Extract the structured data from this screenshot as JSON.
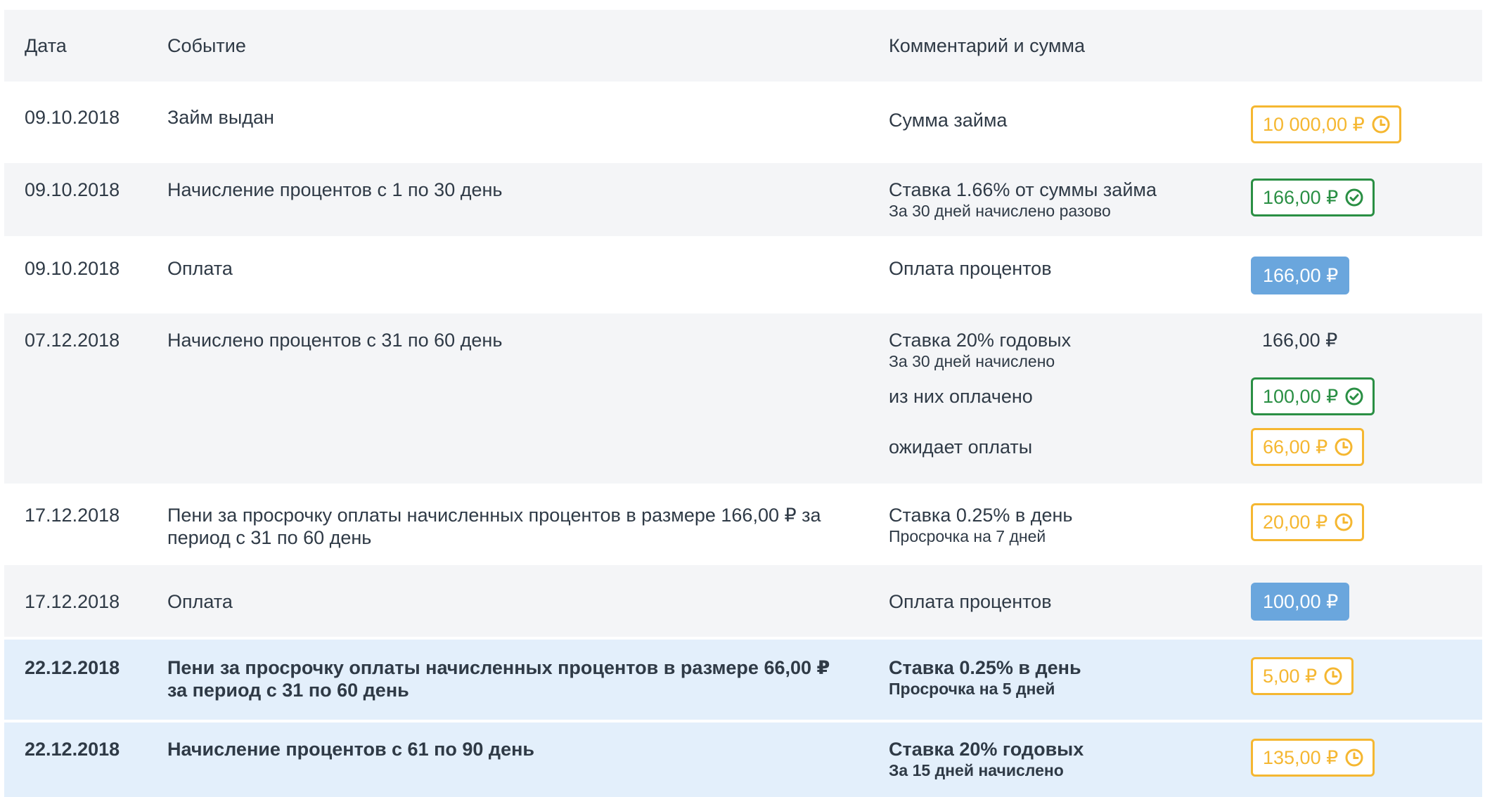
{
  "columns": {
    "date": "Дата",
    "event": "Событие",
    "comment": "Комментарий и сумма"
  },
  "rows": [
    {
      "date": "09.10.2018",
      "event": "Займ выдан",
      "comment": "Сумма займа",
      "amount": "10 000,00 ₽",
      "status": "pending"
    },
    {
      "date": "09.10.2018",
      "event": "Начисление процентов с 1 по 30 день",
      "comment": "Ставка 1.66% от суммы займа",
      "comment_sub": "За 30 дней начислено разово",
      "amount": "166,00 ₽",
      "status": "paid"
    },
    {
      "date": "09.10.2018",
      "event": "Оплата",
      "comment": "Оплата процентов",
      "amount": "166,00 ₽",
      "status": "payment"
    },
    {
      "date": "07.12.2018",
      "event": "Начислено процентов с 31 по 60 день",
      "comment": "Ставка 20% годовых",
      "comment_sub": "За 30 дней начислено",
      "amount": "166,00 ₽",
      "paid_label": "из них оплачено",
      "paid_amount": "100,00 ₽",
      "pending_label": "ожидает оплаты",
      "pending_amount": "66,00 ₽"
    },
    {
      "date": "17.12.2018",
      "event": "Пени за просрочку оплаты начисленных процентов в размере 166,00 ₽ за период с 31 по 60 день",
      "comment": "Ставка 0.25% в день",
      "comment_sub": "Просрочка на 7 дней",
      "amount": "20,00 ₽",
      "status": "pending"
    },
    {
      "date": "17.12.2018",
      "event": "Оплата",
      "comment": "Оплата процентов",
      "amount": "100,00 ₽",
      "status": "payment"
    },
    {
      "date": "22.12.2018",
      "event": "Пени за просрочку оплаты начисленных процентов в размере 66,00 ₽ за период с 31 по 60 день",
      "comment": "Ставка 0.25% в день",
      "comment_sub": "Просрочка на 5 дней",
      "amount": "5,00 ₽",
      "status": "pending"
    },
    {
      "date": "22.12.2018",
      "event": "Начисление процентов с 61 по 90 день",
      "comment": "Ставка 20% годовых",
      "comment_sub": "За 15 дней начислено",
      "amount": "135,00 ₽",
      "status": "pending"
    }
  ],
  "colors": {
    "pending": "#f5b731",
    "paid": "#2a8f44",
    "payment": "#6aa6dd",
    "highlight_row": "#e3effb",
    "stripe_row": "#f4f5f7"
  },
  "icons": {
    "pending": "clock-icon",
    "paid": "check-circle-icon"
  }
}
